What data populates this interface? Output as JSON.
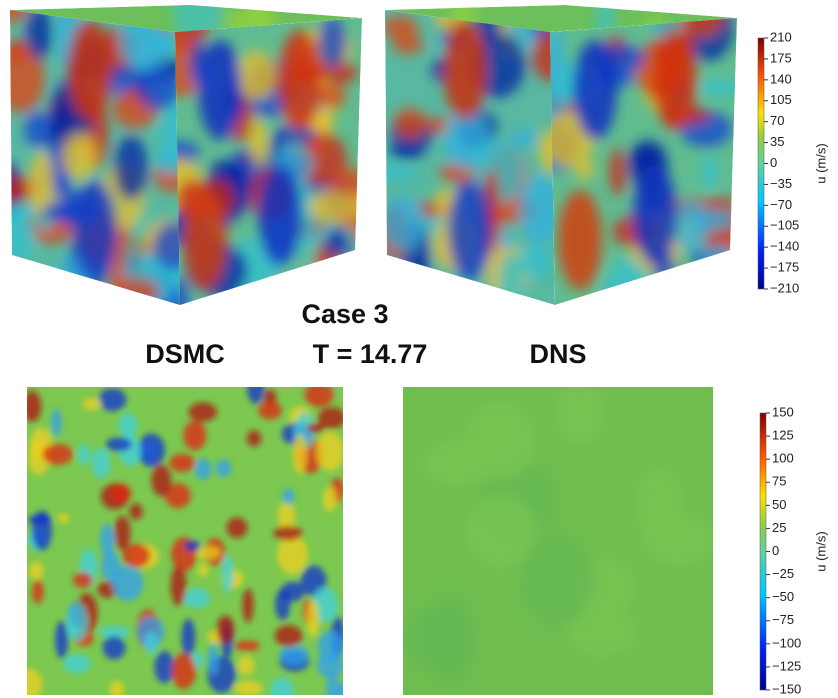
{
  "labels": {
    "case": "Case 3",
    "time": "T = 14.77",
    "left": "DSMC",
    "right": "DNS"
  },
  "colorbars": [
    {
      "label": "u (m/s)",
      "lim": [
        -210,
        210
      ],
      "ticks": [
        210,
        175,
        140,
        105,
        70,
        35,
        0,
        {
          "value": -35,
          "label": "−35"
        },
        {
          "value": -70,
          "label": "−70"
        },
        {
          "value": -105,
          "label": "−105"
        },
        {
          "value": -140,
          "label": "−140"
        },
        {
          "value": -175,
          "label": "−175"
        },
        {
          "value": -210,
          "label": "−210"
        }
      ]
    },
    {
      "label": "u (m/s)",
      "lim": [
        -150,
        150
      ],
      "ticks": [
        150,
        125,
        100,
        75,
        50,
        25,
        0,
        {
          "value": -25,
          "label": "−25"
        },
        {
          "value": -50,
          "label": "−50"
        },
        {
          "value": -75,
          "label": "−75"
        },
        {
          "value": -100,
          "label": "−100"
        },
        {
          "value": -125,
          "label": "−125"
        },
        {
          "value": -150,
          "label": "−150"
        }
      ]
    }
  ]
}
